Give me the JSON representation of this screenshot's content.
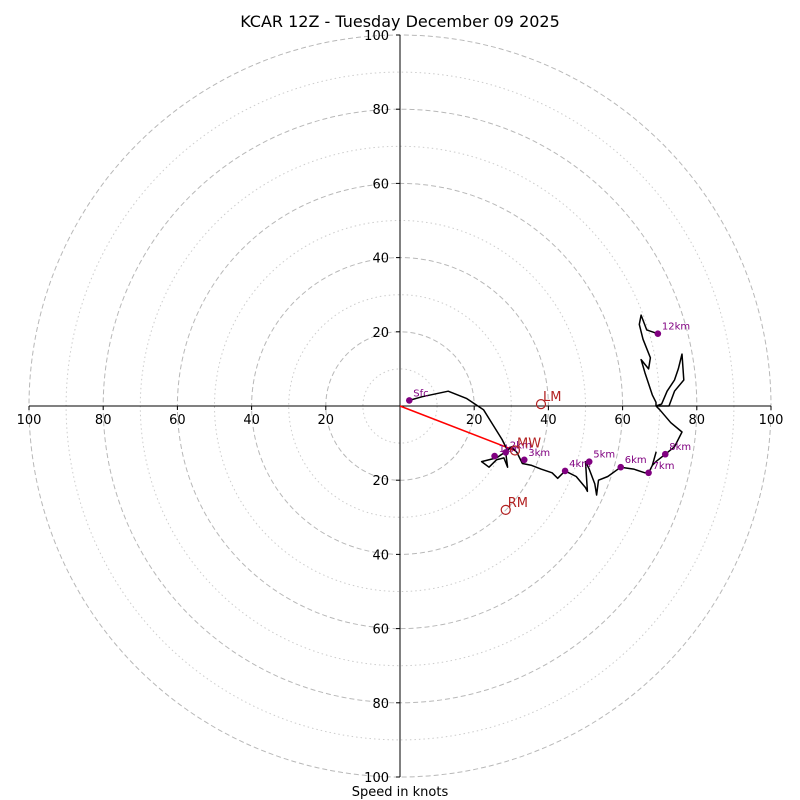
{
  "chart_data": {
    "type": "hodograph",
    "title": "KCAR 12Z - Tuesday December 09 2025",
    "xlabel": "Speed in knots",
    "rings": [
      10,
      20,
      30,
      40,
      50,
      60,
      70,
      80,
      90,
      100
    ],
    "tick_labels": [
      "100",
      "80",
      "60",
      "40",
      "20",
      "20",
      "40",
      "60",
      "80",
      "100"
    ],
    "tick_values": [
      -100,
      -80,
      -60,
      -40,
      -20,
      20,
      40,
      60,
      80,
      100
    ],
    "xlim": [
      -100,
      100
    ],
    "ylim": [
      -100,
      100
    ],
    "trace": [
      [
        2.5,
        1.5
      ],
      [
        6,
        2.5
      ],
      [
        13,
        4
      ],
      [
        18,
        2
      ],
      [
        22.5,
        -1
      ],
      [
        25,
        -5
      ],
      [
        27.5,
        -9
      ],
      [
        29,
        -12
      ],
      [
        26,
        -14
      ],
      [
        22,
        -15
      ],
      [
        24,
        -16.5
      ],
      [
        26,
        -14.5
      ],
      [
        28,
        -14
      ],
      [
        29,
        -16.5
      ],
      [
        28.5,
        -12.5
      ],
      [
        30,
        -11
      ],
      [
        31.5,
        -12.5
      ],
      [
        33,
        -15.5
      ],
      [
        35.5,
        -16
      ],
      [
        38,
        -17
      ],
      [
        41,
        -18
      ],
      [
        42.5,
        -19.5
      ],
      [
        44.5,
        -17.5
      ],
      [
        47.5,
        -19
      ],
      [
        50,
        -22
      ],
      [
        50.5,
        -23
      ],
      [
        50,
        -15
      ],
      [
        51,
        -17
      ],
      [
        52.5,
        -21
      ],
      [
        53,
        -24
      ],
      [
        53.5,
        -20
      ],
      [
        56,
        -19
      ],
      [
        59.5,
        -16.5
      ],
      [
        63,
        -17
      ],
      [
        66,
        -18
      ],
      [
        67,
        -18
      ],
      [
        68,
        -16
      ],
      [
        69,
        -12.5
      ],
      [
        68,
        -16
      ],
      [
        69,
        -15
      ],
      [
        71.5,
        -13
      ],
      [
        74,
        -11
      ],
      [
        76,
        -7
      ],
      [
        73,
        -4.5
      ],
      [
        70,
        -1
      ],
      [
        69,
        0
      ],
      [
        72.5,
        0
      ],
      [
        74,
        4
      ],
      [
        76.5,
        7
      ],
      [
        76,
        14
      ],
      [
        75,
        10
      ],
      [
        74,
        7
      ],
      [
        72,
        4
      ],
      [
        70.5,
        0.5
      ],
      [
        69,
        0
      ],
      [
        69,
        1
      ],
      [
        68,
        3
      ],
      [
        66,
        9
      ],
      [
        65,
        12.5
      ],
      [
        67,
        10
      ],
      [
        67.5,
        13
      ],
      [
        65.5,
        18
      ],
      [
        64.5,
        22
      ],
      [
        65,
        24.5
      ],
      [
        66.5,
        20.5
      ],
      [
        69.5,
        19.5
      ]
    ],
    "points": [
      {
        "label": "Sfc",
        "x": 2.5,
        "y": 1.5
      },
      {
        "label": "1km",
        "x": 25.5,
        "y": -13.5
      },
      {
        "label": "2km",
        "x": 28.5,
        "y": -12.5
      },
      {
        "label": "3km",
        "x": 33.5,
        "y": -14.5
      },
      {
        "label": "4km",
        "x": 44.5,
        "y": -17.5
      },
      {
        "label": "5km",
        "x": 51,
        "y": -15
      },
      {
        "label": "6km",
        "x": 59.5,
        "y": -16.5
      },
      {
        "label": "7km",
        "x": 67,
        "y": -18
      },
      {
        "label": "8km",
        "x": 71.5,
        "y": -13
      },
      {
        "label": "12km",
        "x": 69.5,
        "y": 19.5
      }
    ],
    "storm_motions": [
      {
        "label": "LM",
        "x": 38,
        "y": 0.5
      },
      {
        "label": "MW",
        "x": 31,
        "y": -12
      },
      {
        "label": "RM",
        "x": 28.5,
        "y": -28
      }
    ],
    "shear_vector": {
      "from": [
        0,
        0
      ],
      "to": [
        31,
        -12
      ]
    },
    "colors": {
      "trace": "#000000",
      "points": "#800080",
      "storm_motion": "#b22222",
      "shear": "#ff0000",
      "ring_major": "#b8b8b8",
      "ring_minor": "#cccccc"
    }
  }
}
